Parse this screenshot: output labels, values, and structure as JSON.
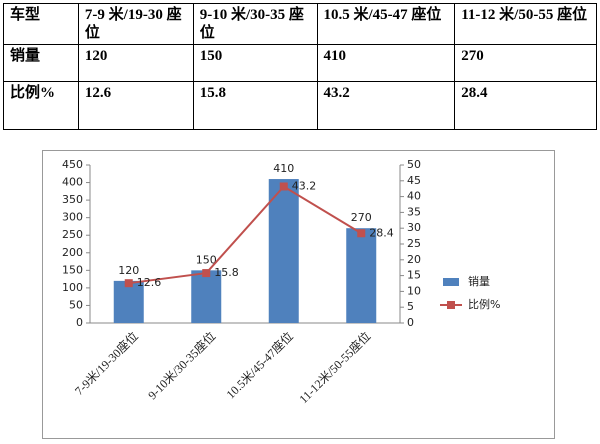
{
  "table": {
    "header": [
      "车型",
      "7-9 米/19-30 座位",
      "9-10 米/30-35 座位",
      "10.5 米/45-47 座位",
      "11-12 米/50-55 座位"
    ],
    "rows": [
      [
        "销量",
        120,
        150,
        410,
        270
      ],
      [
        "比例%",
        12.6,
        15.8,
        43.2,
        28.4
      ]
    ]
  },
  "chart_data": {
    "type": "bar",
    "categories": [
      "7-9米/19-30座位",
      "9-10米/30-35座位",
      "10.5米/45-47座位",
      "11-12米/50-55座位"
    ],
    "series": [
      {
        "name": "销量",
        "color": "#4f81bd",
        "type": "bar",
        "values": [
          120,
          150,
          410,
          270
        ]
      },
      {
        "name": "比例%",
        "color": "#c0504d",
        "type": "line",
        "axis": "y2",
        "values": [
          12.6,
          15.8,
          43.2,
          28.4
        ]
      }
    ],
    "ylim": [
      0,
      450
    ],
    "yticks": [
      0,
      50,
      100,
      150,
      200,
      250,
      300,
      350,
      400,
      450
    ],
    "y2lim": [
      0,
      50
    ],
    "y2ticks": [
      0,
      5,
      10,
      15,
      20,
      25,
      30,
      35,
      40,
      45,
      50
    ],
    "legend": "right"
  }
}
